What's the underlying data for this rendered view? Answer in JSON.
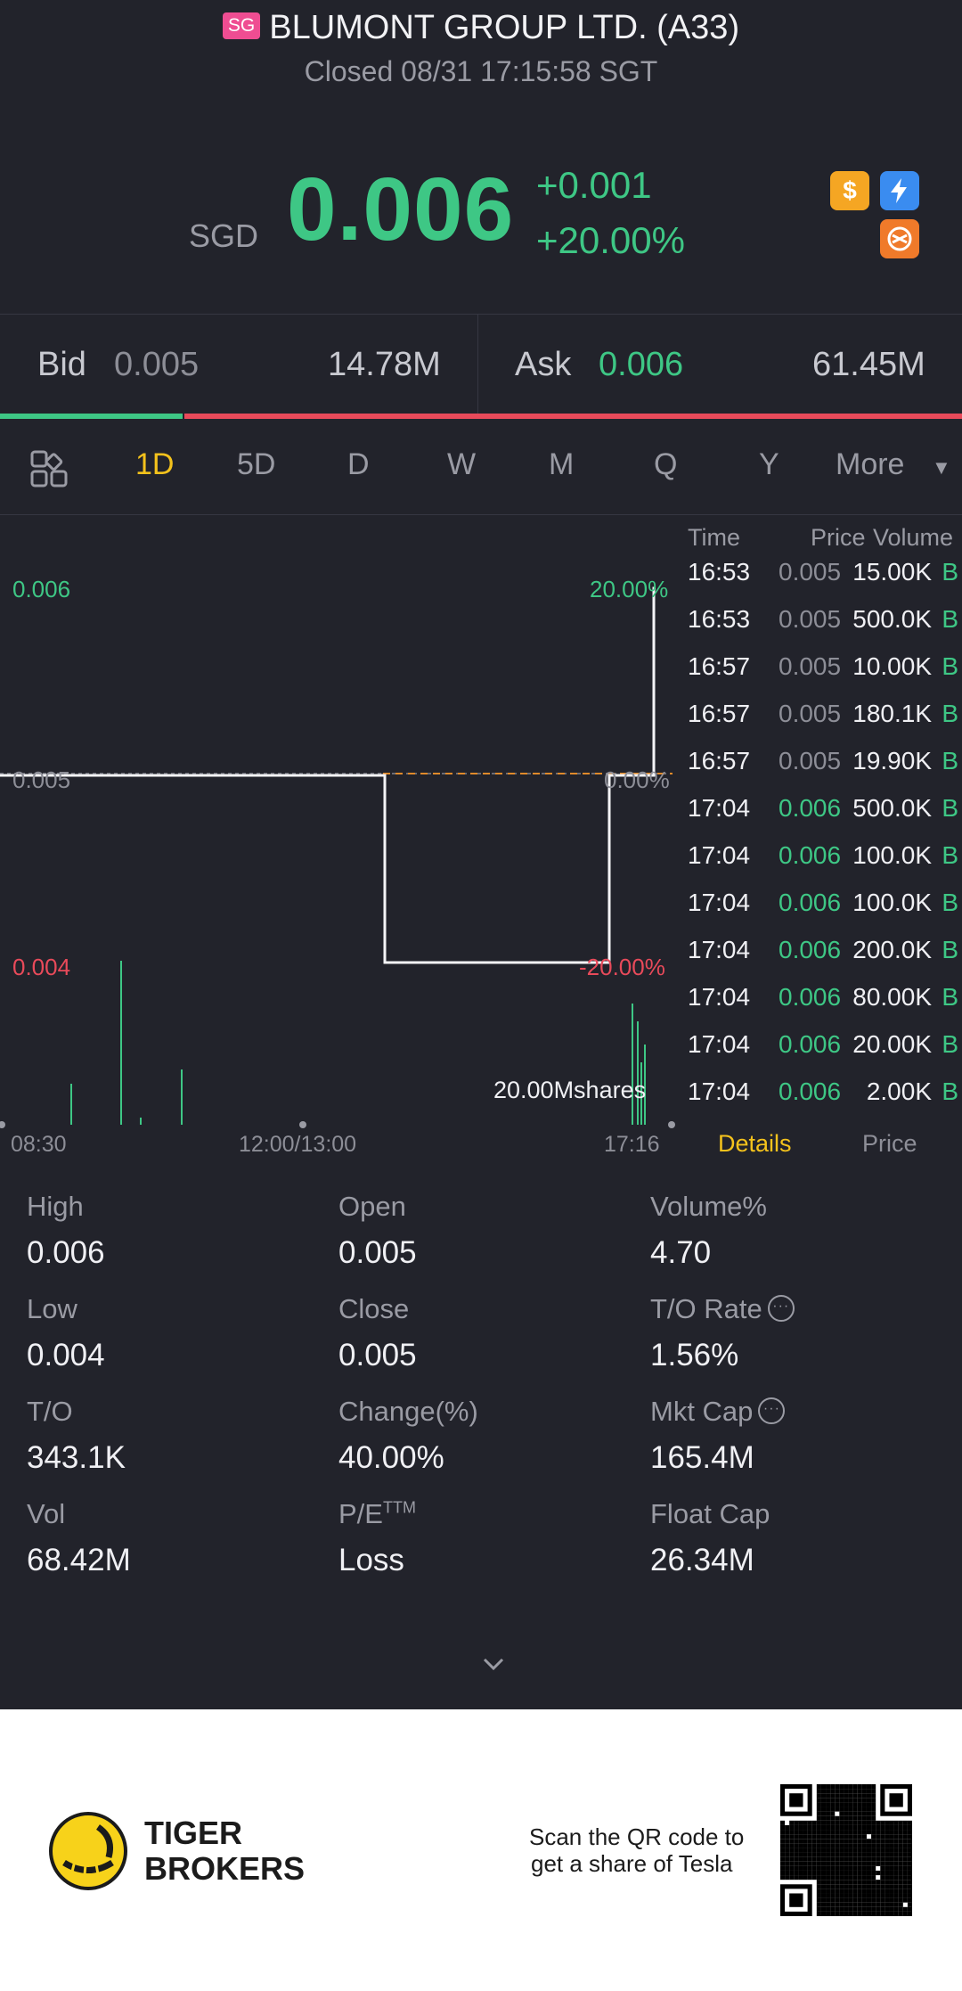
{
  "header": {
    "market_badge": "SG",
    "title": "BLUMONT GROUP LTD. (A33)",
    "status": "Closed 08/31 17:15:58 SGT"
  },
  "quote": {
    "currency": "SGD",
    "price": "0.006",
    "change": "+0.001",
    "change_pct": "+20.00%",
    "icons": [
      "dollar-icon",
      "flash-icon",
      "options-icon"
    ]
  },
  "bid_ask": {
    "bid_label": "Bid",
    "bid_price": "0.005",
    "bid_size": "14.78M",
    "ask_label": "Ask",
    "ask_price": "0.006",
    "ask_size": "61.45M",
    "bid_share": 0.19
  },
  "tabs": [
    "1D",
    "5D",
    "D",
    "W",
    "M",
    "Q",
    "Y",
    "More"
  ],
  "active_tab": "1D",
  "chart_data": {
    "type": "line",
    "y_labels_left": [
      "0.006",
      "0.005",
      "0.004"
    ],
    "y_labels_right": [
      "20.00%",
      "0.00%",
      "-20.00%"
    ],
    "x_labels": [
      "08:30",
      "12:00/13:00",
      "17:16"
    ],
    "ylim": [
      0.004,
      0.006
    ],
    "reference_value": 0.005,
    "series": [
      {
        "x": [
          "08:30",
          "12:00",
          "14:00",
          "14:30",
          "16:57",
          "17:04",
          "17:16"
        ],
        "values": [
          0.005,
          0.005,
          0.005,
          0.004,
          0.005,
          0.006,
          0.006
        ]
      }
    ],
    "volume_max_label": "20.00Mshares"
  },
  "trades": {
    "headers": {
      "time": "Time",
      "price": "Price",
      "volume": "Volume"
    },
    "rows": [
      {
        "time": "16:53",
        "price": "0.005",
        "volume": "15.00K",
        "side": "B",
        "up": false
      },
      {
        "time": "16:53",
        "price": "0.005",
        "volume": "500.0K",
        "side": "B",
        "up": false
      },
      {
        "time": "16:57",
        "price": "0.005",
        "volume": "10.00K",
        "side": "B",
        "up": false
      },
      {
        "time": "16:57",
        "price": "0.005",
        "volume": "180.1K",
        "side": "B",
        "up": false
      },
      {
        "time": "16:57",
        "price": "0.005",
        "volume": "19.90K",
        "side": "B",
        "up": false
      },
      {
        "time": "17:04",
        "price": "0.006",
        "volume": "500.0K",
        "side": "B",
        "up": true
      },
      {
        "time": "17:04",
        "price": "0.006",
        "volume": "100.0K",
        "side": "B",
        "up": true
      },
      {
        "time": "17:04",
        "price": "0.006",
        "volume": "100.0K",
        "side": "B",
        "up": true
      },
      {
        "time": "17:04",
        "price": "0.006",
        "volume": "200.0K",
        "side": "B",
        "up": true
      },
      {
        "time": "17:04",
        "price": "0.006",
        "volume": "80.00K",
        "side": "B",
        "up": true
      },
      {
        "time": "17:04",
        "price": "0.006",
        "volume": "20.00K",
        "side": "B",
        "up": true
      },
      {
        "time": "17:04",
        "price": "0.006",
        "volume": "2.00K",
        "side": "B",
        "up": true
      }
    ],
    "tab_details": "Details",
    "tab_price": "Price"
  },
  "stats": [
    {
      "label": "High",
      "value": "0.006"
    },
    {
      "label": "Open",
      "value": "0.005"
    },
    {
      "label": "Volume%",
      "value": "4.70"
    },
    {
      "label": "Low",
      "value": "0.004"
    },
    {
      "label": "Close",
      "value": "0.005"
    },
    {
      "label": "T/O Rate",
      "value": "1.56%",
      "info": true
    },
    {
      "label": "T/O",
      "value": "343.1K"
    },
    {
      "label": "Change(%)",
      "value": "40.00%"
    },
    {
      "label": "Mkt Cap",
      "value": "165.4M",
      "info": true
    },
    {
      "label": "Vol",
      "value": "68.42M"
    },
    {
      "label": "P/E",
      "label_sup": "TTM",
      "value": "Loss"
    },
    {
      "label": "Float Cap",
      "value": "26.34M"
    }
  ],
  "footer": {
    "brand_line1": "TIGER",
    "brand_line2": "BROKERS",
    "scan_line1": "Scan the QR code to",
    "scan_line2": "get a share of Tesla"
  },
  "colors": {
    "up": "#3ec785",
    "down": "#e84a5a",
    "accent": "#f4c21c",
    "background": "#22232b"
  }
}
